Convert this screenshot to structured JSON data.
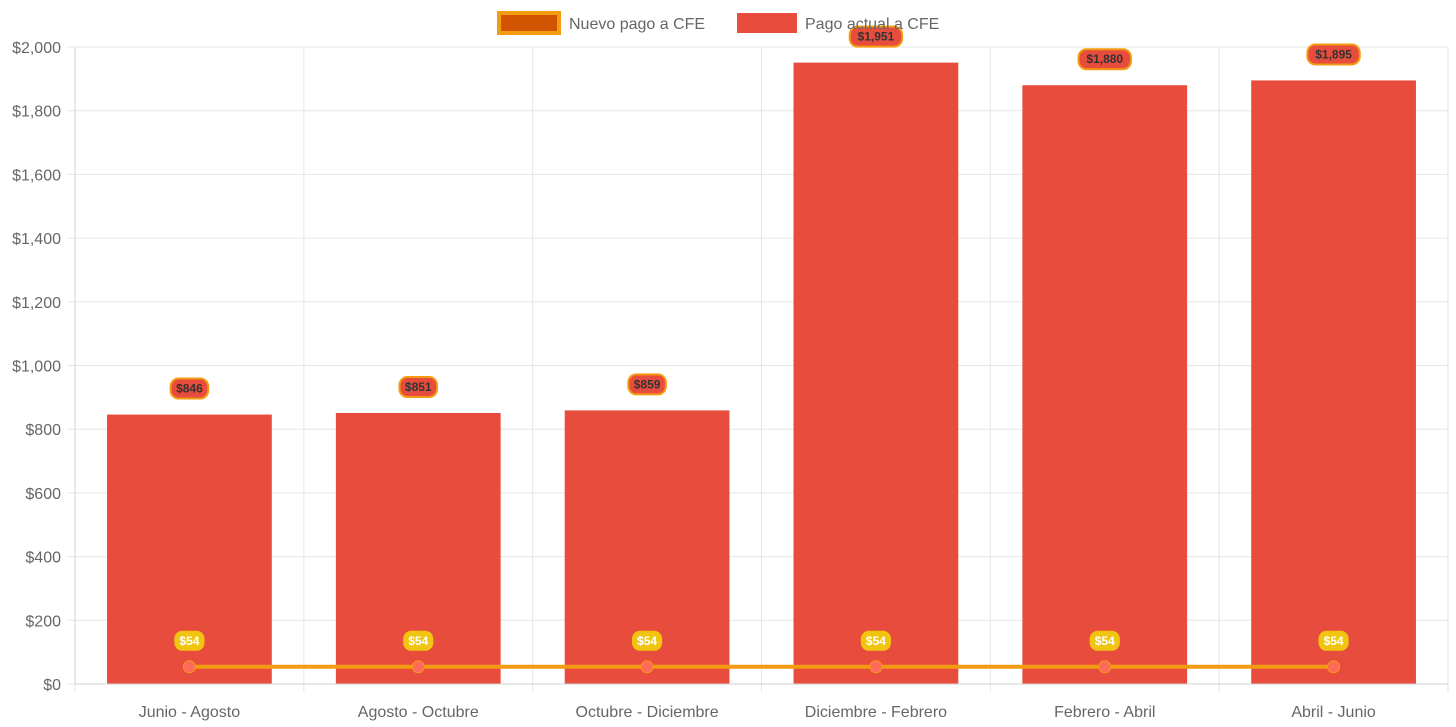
{
  "chart_data": {
    "type": "bar",
    "categories": [
      "Junio - Agosto",
      "Agosto - Octubre",
      "Octubre - Diciembre",
      "Diciembre - Febrero",
      "Febrero - Abril",
      "Abril - Junio"
    ],
    "series": [
      {
        "name": "Nuevo pago a CFE",
        "type": "line",
        "values": [
          54,
          54,
          54,
          54,
          54,
          54
        ],
        "labels": [
          "$54",
          "$54",
          "$54",
          "$54",
          "$54",
          "$54"
        ],
        "color": "#f39c12",
        "fill_color": "#d35400",
        "point_color": "#ff6b5b",
        "label_bg": "#f1c40f",
        "label_text_color": "#ffffff"
      },
      {
        "name": "Pago actual a CFE",
        "type": "bar",
        "values": [
          846,
          851,
          859,
          1951,
          1880,
          1895
        ],
        "labels": [
          "$846",
          "$851",
          "$859",
          "$1,951",
          "$1,880",
          "$1,895"
        ],
        "color": "#e74c3c",
        "label_bg": "#e74c3c",
        "label_border": "#f39c12",
        "label_text_color": "#333333"
      }
    ],
    "y_tick_values": [
      0,
      200,
      400,
      600,
      800,
      1000,
      1200,
      1400,
      1600,
      1800,
      2000
    ],
    "y_tick_labels": [
      "$0",
      "$200",
      "$400",
      "$600",
      "$800",
      "$1,000",
      "$1,200",
      "$1,400",
      "$1,600",
      "$1,800",
      "$2,000"
    ],
    "ylim": [
      0,
      2000
    ],
    "xlabel": "",
    "ylabel": "",
    "title": "",
    "grid": true,
    "legend_position": "top-center"
  }
}
